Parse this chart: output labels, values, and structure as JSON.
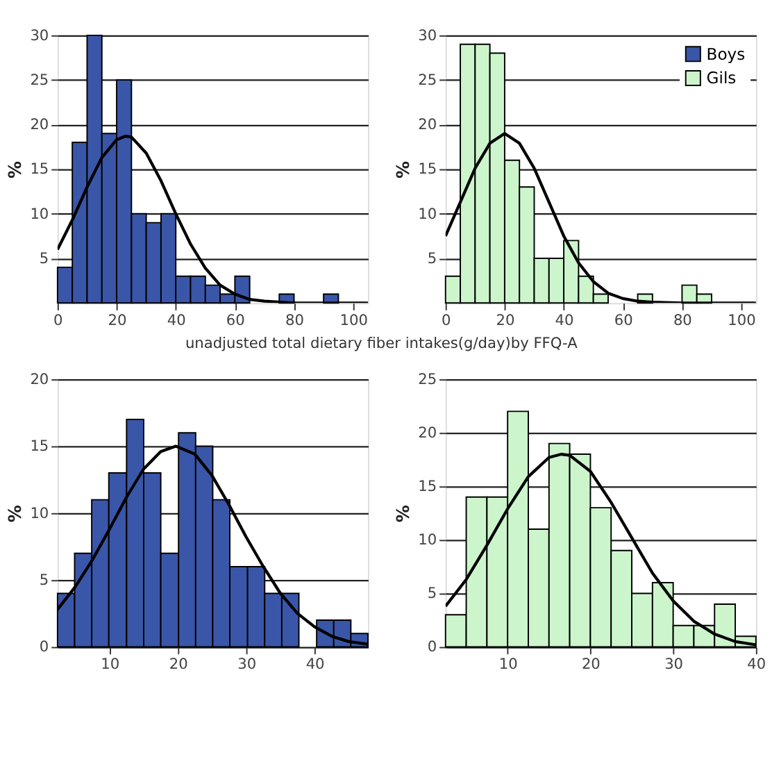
{
  "chart_data": [
    {
      "type": "histogram",
      "xlabel": "unadjusted total dietary fiber intakes(g/day)by FFQ-A",
      "ylabel": "%",
      "xlim": [
        0,
        105
      ],
      "ylim": [
        0,
        30
      ],
      "xticks": [
        0,
        20,
        40,
        60,
        80,
        100
      ],
      "yticks": [
        5,
        10,
        15,
        20,
        25,
        30
      ],
      "grid": "y",
      "bins": [
        0,
        5,
        10,
        15,
        20,
        25,
        30,
        35,
        40,
        45,
        50,
        55,
        60,
        65,
        70,
        75,
        80,
        85,
        90,
        95
      ],
      "series": [
        {
          "name": "Boys",
          "color": "#3a56a8",
          "values": [
            4,
            18,
            30,
            19,
            25,
            10,
            9,
            10,
            3,
            3,
            2,
            1,
            3,
            0,
            0,
            1,
            0,
            0,
            1
          ]
        },
        {
          "type": "line",
          "color": "#000000",
          "x": [
            0,
            5,
            10,
            15,
            20,
            23,
            25,
            30,
            35,
            40,
            45,
            50,
            55,
            60,
            65,
            70,
            80,
            105
          ],
          "values": [
            6.0,
            9.3,
            13.0,
            16.3,
            18.3,
            18.7,
            18.6,
            16.8,
            13.7,
            10.0,
            6.6,
            3.9,
            2.0,
            1.0,
            0.4,
            0.2,
            0,
            0
          ]
        }
      ]
    },
    {
      "type": "histogram",
      "ylabel": "%",
      "xlim": [
        0,
        105
      ],
      "ylim": [
        0,
        30
      ],
      "xticks": [
        0,
        20,
        40,
        60,
        80,
        100
      ],
      "yticks": [
        5,
        10,
        15,
        20,
        25,
        30
      ],
      "grid": "y",
      "legend": "top right",
      "bins": [
        0,
        5,
        10,
        15,
        20,
        25,
        30,
        35,
        40,
        45,
        50,
        55,
        60,
        65,
        70,
        75,
        80,
        85,
        90
      ],
      "series": [
        {
          "name": "Gils",
          "color": "#ccf5cc",
          "values": [
            3,
            29,
            29,
            28,
            16,
            13,
            5,
            5,
            7,
            3,
            1,
            0,
            0,
            1,
            0,
            0,
            2,
            1
          ]
        },
        {
          "type": "line",
          "color": "#000000",
          "x": [
            0,
            5,
            10,
            15,
            20,
            25,
            30,
            35,
            40,
            45,
            50,
            55,
            60,
            65,
            70,
            80,
            105
          ],
          "values": [
            7.5,
            11.3,
            15.1,
            17.9,
            19.0,
            17.9,
            15.1,
            11.3,
            7.5,
            4.5,
            2.4,
            1.1,
            0.5,
            0.2,
            0.1,
            0,
            0
          ]
        }
      ]
    },
    {
      "type": "histogram",
      "ylabel": "%",
      "xlim": [
        2.4,
        47.8
      ],
      "ylim": [
        0,
        20
      ],
      "xticks": [
        10,
        20,
        30,
        40
      ],
      "yticks": [
        0,
        5,
        10,
        15,
        20
      ],
      "grid": "y",
      "bins": [
        2.4,
        4.9,
        7.4,
        9.9,
        12.5,
        15.0,
        17.5,
        20.1,
        22.6,
        25.1,
        27.6,
        30.2,
        32.7,
        35.2,
        37.7,
        40.3,
        42.8,
        45.3,
        47.8
      ],
      "series": [
        {
          "color": "#3a56a8",
          "values": [
            4,
            7,
            11,
            13,
            17,
            13,
            7,
            16,
            15,
            11,
            6,
            6,
            4,
            4,
            0,
            2,
            2,
            1
          ]
        },
        {
          "type": "line",
          "color": "#000000",
          "x": [
            2.4,
            5,
            7.5,
            10,
            12.5,
            15,
            17.5,
            19.7,
            22.5,
            25,
            27.5,
            30,
            32.5,
            35,
            37.5,
            40,
            42.5,
            45,
            47.8
          ],
          "values": [
            2.8,
            4.5,
            6.5,
            8.8,
            11.2,
            13.3,
            14.6,
            15.0,
            14.4,
            12.8,
            10.6,
            8.2,
            6.0,
            4.0,
            2.5,
            1.5,
            0.8,
            0.4,
            0.2
          ]
        }
      ]
    },
    {
      "type": "histogram",
      "ylabel": "%",
      "xlim": [
        2.5,
        40
      ],
      "ylim": [
        0,
        25
      ],
      "xticks": [
        10,
        20,
        30,
        40
      ],
      "yticks": [
        0,
        5,
        10,
        15,
        20,
        25
      ],
      "grid": "y",
      "bins": [
        2.5,
        5,
        7.5,
        10,
        12.5,
        15,
        17.5,
        20,
        22.5,
        25,
        27.5,
        30,
        32.5,
        35,
        37.5,
        40
      ],
      "series": [
        {
          "color": "#ccf5cc",
          "values": [
            3,
            14,
            14,
            22,
            11,
            19,
            18,
            13,
            9,
            5,
            6,
            2,
            2,
            4,
            1
          ]
        },
        {
          "type": "line",
          "color": "#000000",
          "x": [
            2.5,
            5,
            7.5,
            10,
            12.5,
            15,
            16.5,
            17.5,
            20,
            22.5,
            25,
            27.5,
            30,
            32.5,
            35,
            37.5,
            40
          ],
          "values": [
            3.8,
            6.3,
            9.5,
            12.9,
            15.9,
            17.7,
            18.0,
            17.9,
            16.4,
            13.5,
            10.2,
            6.9,
            4.3,
            2.4,
            1.2,
            0.5,
            0.2
          ]
        }
      ]
    }
  ]
}
